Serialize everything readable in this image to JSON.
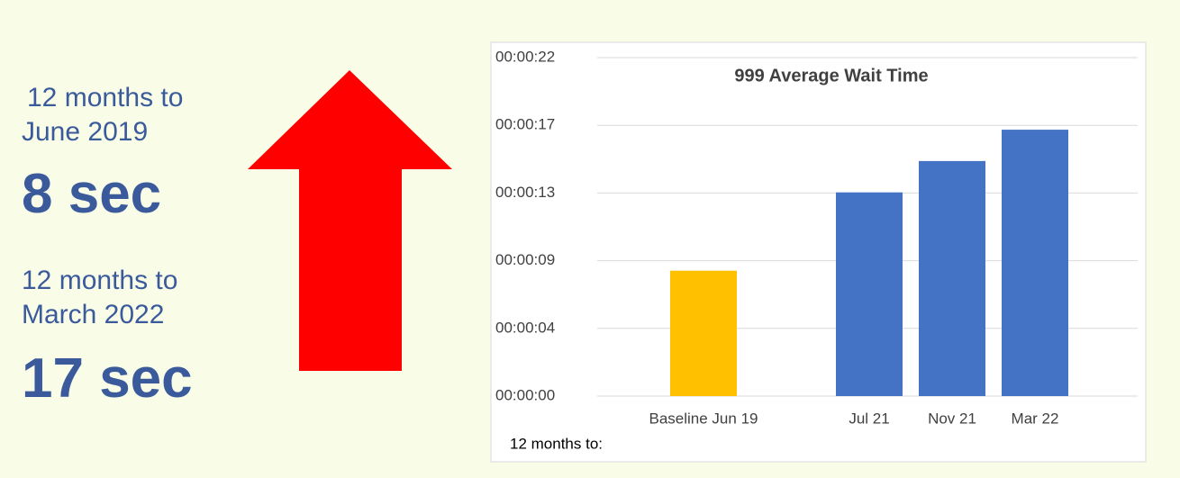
{
  "panel": {
    "period1": "12 months to",
    "period1b": "June 2019",
    "value1": "8 sec",
    "period2": "12 months to",
    "period2b": "March 2022",
    "value2": "17 sec"
  },
  "chart_data": {
    "type": "bar",
    "title": "999 Average Wait Time",
    "x_label": "12 months to:",
    "categories": [
      "Baseline Jun 19",
      null,
      "Jul 21",
      "Nov 21",
      "Mar 22"
    ],
    "values": [
      8,
      null,
      13,
      15,
      17
    ],
    "colors": [
      "#ffc000",
      null,
      "#4472c4",
      "#4472c4",
      "#4472c4"
    ],
    "ylim": [
      0,
      21.6
    ],
    "yticks": [
      {
        "value": 0,
        "label": "00:00:00"
      },
      {
        "value": 4.32,
        "label": "00:00:04"
      },
      {
        "value": 8.64,
        "label": "00:00:09"
      },
      {
        "value": 12.96,
        "label": "00:00:13"
      },
      {
        "value": 17.28,
        "label": "00:00:17"
      },
      {
        "value": 21.6,
        "label": "00:00:22"
      }
    ],
    "grid": true
  }
}
